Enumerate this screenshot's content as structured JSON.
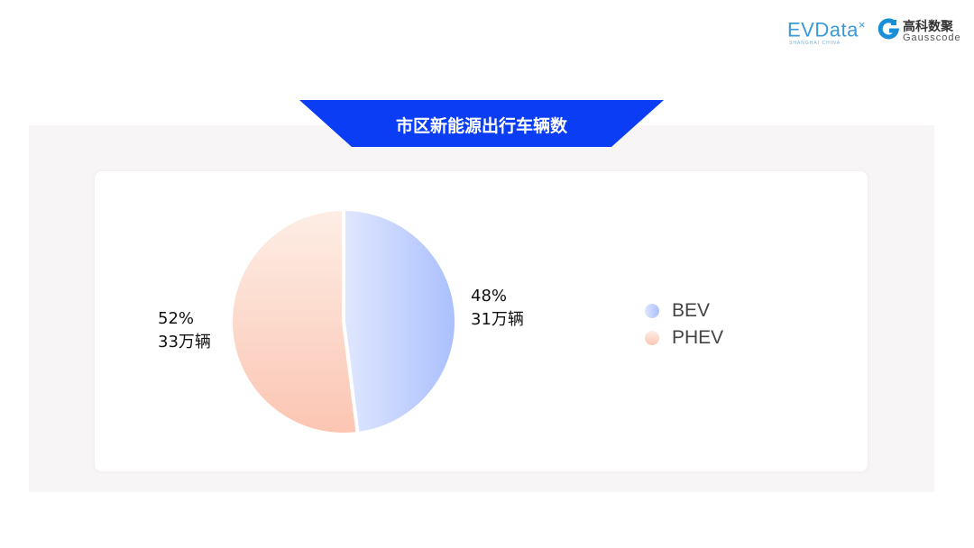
{
  "logos": {
    "evdata": "EVData",
    "evdata_sub": "SHANGHAI CHINA",
    "gauss_cn": "高科数聚",
    "gauss_en": "Gausscode"
  },
  "title": "市区新能源出行车辆数",
  "colors": {
    "banner": "#0b3df5",
    "bev": "#aabffd",
    "bev_light": "#e0e7fe",
    "phev": "#fcc5b2",
    "phev_light": "#fdeee6"
  },
  "chart_data": {
    "type": "pie",
    "title": "市区新能源出行车辆数",
    "categories": [
      "BEV",
      "PHEV"
    ],
    "values": [
      48,
      52
    ],
    "units": "%",
    "data_labels": [
      {
        "percent": "48%",
        "count": "31万辆"
      },
      {
        "percent": "52%",
        "count": "33万辆"
      }
    ],
    "legend_position": "right"
  }
}
